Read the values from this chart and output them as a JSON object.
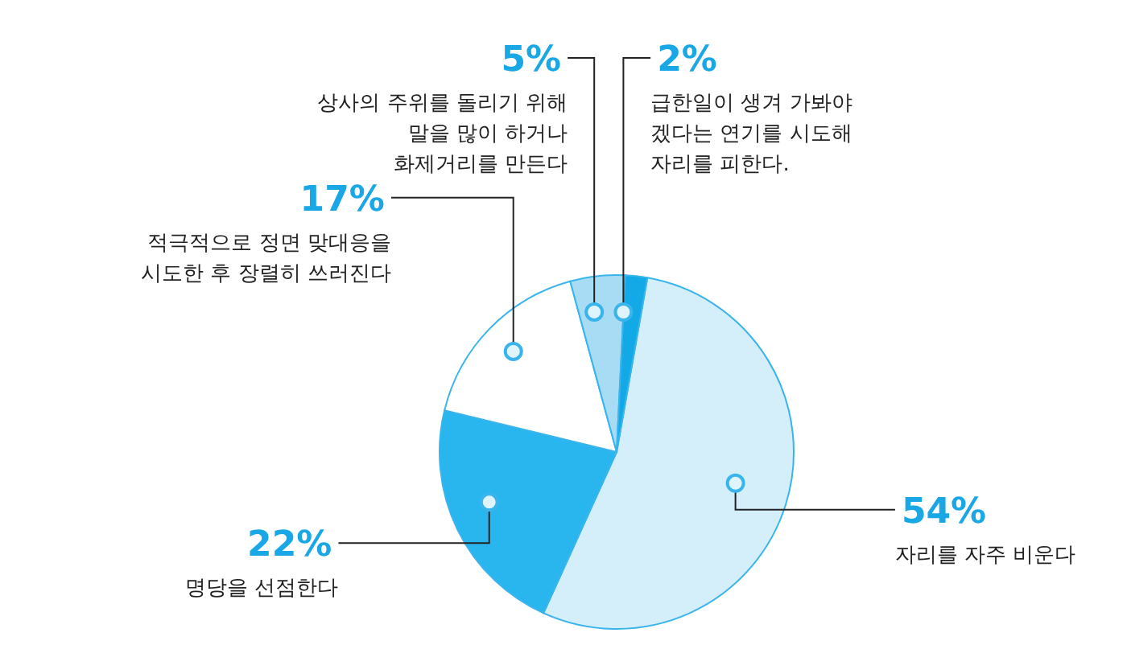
{
  "chart_data": {
    "type": "pie",
    "categories": [
      "자리를 자주 비운다",
      "명당을 선점한다",
      "적극적으로 정면 맞대응을 시도한 후 장렬히 쓰러진다",
      "상사의 주위를 돌리기 위해 말을 많이 하거나 화제거리를 만든다",
      "급한일이 생겨 가봐야 겠다는 연기를 시도해 자리를 피한다."
    ],
    "values": [
      54,
      22,
      17,
      5,
      2
    ],
    "colors": [
      "#d4eefa",
      "#29b6ee",
      "#ffffff",
      "#a8dcf5",
      "#12a9e6"
    ],
    "value_labels": [
      "54%",
      "22%",
      "17%",
      "5%",
      "2%"
    ],
    "legend": false
  }
}
